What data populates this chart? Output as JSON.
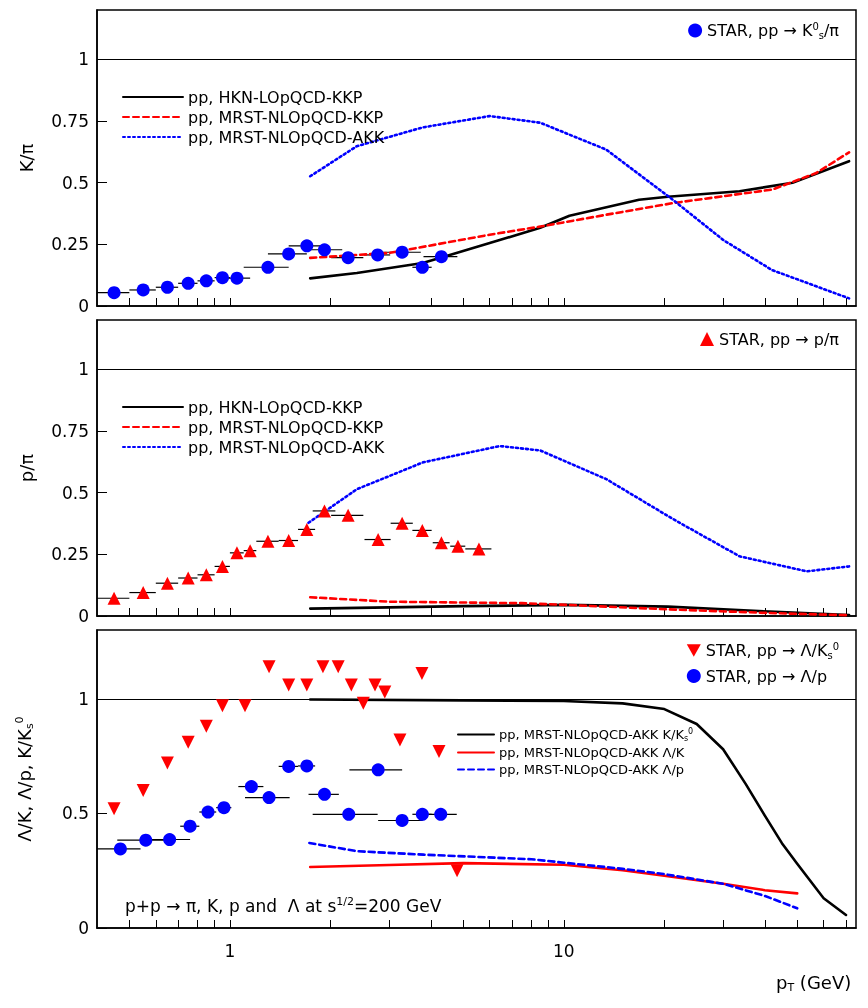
{
  "chart_data": [
    {
      "type": "scatter",
      "ylabel": "K/π",
      "xlim": [
        0.4,
        75
      ],
      "ylim": [
        0,
        1.2
      ],
      "log": "x",
      "grid": false,
      "legend": "top right",
      "tick_labels": "y",
      "xticks": [
        {
          "value": 0.5,
          "label": null
        },
        {
          "value": 0.6,
          "label": null
        },
        {
          "value": 0.7,
          "label": null
        },
        {
          "value": 0.8,
          "label": null
        },
        {
          "value": 0.9,
          "label": null
        },
        {
          "value": 1,
          "label": null
        },
        {
          "value": 2,
          "label": null
        },
        {
          "value": 3,
          "label": null
        },
        {
          "value": 4,
          "label": null
        },
        {
          "value": 5,
          "label": null
        },
        {
          "value": 6,
          "label": null
        },
        {
          "value": 7,
          "label": null
        },
        {
          "value": 8,
          "label": null
        },
        {
          "value": 9,
          "label": null
        },
        {
          "value": 10,
          "label": null
        },
        {
          "value": 20,
          "label": null
        },
        {
          "value": 30,
          "label": null
        },
        {
          "value": 40,
          "label": null
        },
        {
          "value": 50,
          "label": null
        },
        {
          "value": 60,
          "label": null
        },
        {
          "value": 70,
          "label": null
        }
      ],
      "yticks": [
        0,
        0.25,
        0.5,
        0.75,
        1
      ],
      "ref_lines": [
        {
          "axis": "y",
          "value": 1
        }
      ],
      "series": [
        {
          "name": "STAR, pp → K$^{0}$$_{s}$/π",
          "color": "#0000ff",
          "marker": "circle",
          "x": [
            0.45,
            0.55,
            0.65,
            0.75,
            0.85,
            0.95,
            1.05,
            1.3,
            1.5,
            1.7,
            1.92,
            2.26,
            2.77,
            3.28,
            3.77,
            4.3
          ],
          "values": [
            0.054,
            0.065,
            0.076,
            0.092,
            0.102,
            0.115,
            0.113,
            0.157,
            0.211,
            0.244,
            0.228,
            0.196,
            0.207,
            0.218,
            0.157,
            0.2
          ],
          "xerrors": [
            0.05,
            0.05,
            0.05,
            0.05,
            0.05,
            0.05,
            0.1,
            0.2,
            0.2,
            0.2,
            0.25,
            0.25,
            0.25,
            0.45,
            0.25,
            0.5
          ]
        },
        {
          "type": "line",
          "name": "pp, HKN-LOpQCD-KKP",
          "color": "#000000",
          "line_style": "solid",
          "x": [
            1.74,
            2.4,
            3.78,
            6,
            8.5,
            10.4,
            16.8,
            20.5,
            33.6,
            48.4,
            71.5
          ],
          "values": [
            0.112,
            0.134,
            0.174,
            0.255,
            0.317,
            0.366,
            0.431,
            0.443,
            0.465,
            0.5,
            0.587
          ]
        },
        {
          "type": "line",
          "name": "pp, MRST-NLOpQCD-KKP",
          "color": "#ff0000",
          "line_style": "dashed",
          "x": [
            1.74,
            3,
            6,
            8.5,
            13.4,
            21.2,
            42.1,
            57,
            71.5
          ],
          "values": [
            0.195,
            0.215,
            0.289,
            0.322,
            0.37,
            0.417,
            0.472,
            0.539,
            0.623
          ]
        },
        {
          "type": "line",
          "name": "pp, MRST-NLOpQCD-AKK",
          "color": "#0000ff",
          "line_style": "dotted",
          "x": [
            1.74,
            2.4,
            3.78,
            6,
            8.5,
            13.4,
            21.2,
            30,
            42,
            71.5
          ],
          "values": [
            0.526,
            0.648,
            0.724,
            0.77,
            0.743,
            0.634,
            0.431,
            0.268,
            0.146,
            0.031
          ]
        }
      ]
    },
    {
      "type": "scatter",
      "ylabel": "p/π",
      "xlim": [
        0.4,
        75
      ],
      "ylim": [
        0,
        1.2
      ],
      "log": "x",
      "grid": false,
      "legend": "top right",
      "tick_labels": "y",
      "xticks": [
        {
          "value": 0.5,
          "label": null
        },
        {
          "value": 0.6,
          "label": null
        },
        {
          "value": 0.7,
          "label": null
        },
        {
          "value": 0.8,
          "label": null
        },
        {
          "value": 0.9,
          "label": null
        },
        {
          "value": 1,
          "label": null
        },
        {
          "value": 2,
          "label": null
        },
        {
          "value": 3,
          "label": null
        },
        {
          "value": 4,
          "label": null
        },
        {
          "value": 5,
          "label": null
        },
        {
          "value": 6,
          "label": null
        },
        {
          "value": 7,
          "label": null
        },
        {
          "value": 8,
          "label": null
        },
        {
          "value": 9,
          "label": null
        },
        {
          "value": 10,
          "label": null
        },
        {
          "value": 20,
          "label": null
        },
        {
          "value": 30,
          "label": null
        },
        {
          "value": 40,
          "label": null
        },
        {
          "value": 50,
          "label": null
        },
        {
          "value": 60,
          "label": null
        },
        {
          "value": 70,
          "label": null
        }
      ],
      "yticks": [
        0,
        0.25,
        0.5,
        0.75,
        1
      ],
      "ref_lines": [
        {
          "axis": "y",
          "value": 1
        }
      ],
      "series": [
        {
          "name": "STAR, pp → p/π",
          "color": "#ff0000",
          "marker": "triangle",
          "x": [
            0.45,
            0.55,
            0.65,
            0.75,
            0.85,
            0.95,
            1.05,
            1.15,
            1.3,
            1.5,
            1.7,
            1.92,
            2.26,
            2.78,
            3.28,
            3.77,
            4.3,
            4.82,
            5.57
          ],
          "values": [
            0.072,
            0.095,
            0.133,
            0.154,
            0.167,
            0.201,
            0.256,
            0.265,
            0.303,
            0.306,
            0.351,
            0.426,
            0.408,
            0.31,
            0.376,
            0.347,
            0.297,
            0.283,
            0.272
          ],
          "xerrors": [
            0.05,
            0.05,
            0.05,
            0.05,
            0.05,
            0.05,
            0.05,
            0.05,
            0.1,
            0.1,
            0.1,
            0.15,
            0.25,
            0.25,
            0.25,
            0.25,
            0.25,
            0.25,
            0.5
          ]
        },
        {
          "type": "line",
          "name": "pp, HKN-LOpQCD-KKP",
          "color": "#000000",
          "line_style": "solid",
          "x": [
            1.74,
            3,
            5,
            10.2,
            20.5,
            41.4,
            71.5
          ],
          "values": [
            0.03,
            0.035,
            0.04,
            0.045,
            0.038,
            0.018,
            0.004
          ]
        },
        {
          "type": "line",
          "name": "pp, MRST-NLOpQCD-KKP",
          "color": "#ff0000",
          "line_style": "dashed",
          "x": [
            1.74,
            3,
            7.5,
            10.2,
            20.5,
            41.4,
            71.5
          ],
          "values": [
            0.076,
            0.058,
            0.052,
            0.045,
            0.027,
            0.012,
            0.003
          ]
        },
        {
          "type": "line",
          "name": "pp, MRST-NLOpQCD-AKK",
          "color": "#0000ff",
          "line_style": "dotted",
          "x": [
            1.72,
            2.4,
            3.79,
            6.43,
            8.5,
            13.4,
            21.3,
            33.6,
            53.4,
            71.5
          ],
          "values": [
            0.378,
            0.514,
            0.623,
            0.689,
            0.671,
            0.555,
            0.392,
            0.242,
            0.181,
            0.201
          ]
        }
      ]
    },
    {
      "type": "scatter",
      "ylabel": "Λ/K, Λ/p, K/K$_{s}$$^{0}$",
      "xlabel": "p$_{T}$ (GeV)",
      "xlim": [
        0.4,
        75
      ],
      "ylim": [
        0,
        1.3
      ],
      "log": "x",
      "grid": false,
      "legend": "top right",
      "xticks": [
        {
          "value": 0.5,
          "label": null
        },
        {
          "value": 0.6,
          "label": null
        },
        {
          "value": 0.7,
          "label": null
        },
        {
          "value": 0.8,
          "label": null
        },
        {
          "value": 0.9,
          "label": null
        },
        {
          "value": 1,
          "label": "1"
        },
        {
          "value": 2,
          "label": null
        },
        {
          "value": 3,
          "label": null
        },
        {
          "value": 4,
          "label": null
        },
        {
          "value": 5,
          "label": null
        },
        {
          "value": 6,
          "label": null
        },
        {
          "value": 7,
          "label": null
        },
        {
          "value": 8,
          "label": null
        },
        {
          "value": 9,
          "label": null
        },
        {
          "value": 10,
          "label": "10"
        },
        {
          "value": 20,
          "label": null
        },
        {
          "value": 30,
          "label": null
        },
        {
          "value": 40,
          "label": null
        },
        {
          "value": 50,
          "label": null
        },
        {
          "value": 60,
          "label": null
        },
        {
          "value": 70,
          "label": null
        }
      ],
      "yticks": [
        0,
        0.5,
        1
      ],
      "ref_lines": [
        {
          "axis": "y",
          "value": 1
        }
      ],
      "annotations": [
        "p+p → π, K, p and  Λ at s$^{1/2}$=200 GeV"
      ],
      "series": [
        {
          "name": "STAR, pp → Λ/K$_{s}$$^{0}$",
          "color": "#ff0000",
          "marker": "triangle-down",
          "x": [
            0.45,
            0.55,
            0.65,
            0.75,
            0.85,
            0.95,
            1.11,
            1.31,
            1.5,
            1.7,
            1.9,
            2.11,
            2.31,
            2.51,
            2.72,
            2.91,
            3.23,
            3.76,
            4.23,
            4.79
          ],
          "values": [
            0.52,
            0.6,
            0.72,
            0.81,
            0.88,
            0.97,
            0.97,
            1.14,
            1.06,
            1.06,
            1.14,
            1.14,
            1.06,
            0.98,
            1.06,
            1.03,
            0.82,
            1.11,
            0.77,
            0.25
          ]
        },
        {
          "name": "STAR, pp → Λ/p",
          "color": "#0000ff",
          "marker": "circle",
          "x": [
            0.47,
            0.56,
            0.66,
            0.76,
            0.86,
            0.96,
            1.16,
            1.31,
            1.5,
            1.7,
            1.92,
            2.27,
            2.78,
            3.28,
            3.77,
            4.28
          ],
          "values": [
            0.345,
            0.383,
            0.386,
            0.444,
            0.506,
            0.525,
            0.617,
            0.569,
            0.705,
            0.707,
            0.583,
            0.496,
            0.69,
            0.469,
            0.496,
            0.496
          ],
          "xerrors": [
            0.07,
            0.1,
            0.1,
            0.05,
            0.05,
            0.05,
            0.1,
            0.2,
            0.1,
            0.1,
            0.2,
            0.5,
            0.5,
            0.5,
            0.25,
            0.5
          ]
        },
        {
          "type": "line",
          "name": "pp, MRST-NLOpQCD-AKK K/K$_{s}$$^{0}$",
          "color": "#000000",
          "line_style": "solid",
          "x": [
            1.74,
            5,
            10,
            15,
            20,
            25,
            30,
            35,
            40,
            45,
            50,
            60,
            70
          ],
          "values": [
            0.997,
            0.993,
            0.99,
            0.98,
            0.955,
            0.89,
            0.78,
            0.63,
            0.49,
            0.37,
            0.28,
            0.13,
            0.057
          ]
        },
        {
          "type": "line",
          "name": "pp, MRST-NLOpQCD-AKK Λ/K",
          "color": "#ff0000",
          "line_style": "solid",
          "x": [
            1.74,
            3,
            5,
            10,
            15,
            20,
            30,
            40,
            50
          ],
          "values": [
            0.266,
            0.275,
            0.283,
            0.276,
            0.252,
            0.228,
            0.193,
            0.165,
            0.151
          ]
        },
        {
          "type": "line",
          "name": "pp, MRST-NLOpQCD-AKK Λ/p",
          "color": "#0000ff",
          "line_style": "dashed",
          "x": [
            1.73,
            2.4,
            3.8,
            8,
            10,
            15,
            20,
            30,
            40,
            50
          ],
          "values": [
            0.371,
            0.335,
            0.32,
            0.3,
            0.285,
            0.258,
            0.235,
            0.193,
            0.14,
            0.086
          ]
        }
      ]
    }
  ]
}
